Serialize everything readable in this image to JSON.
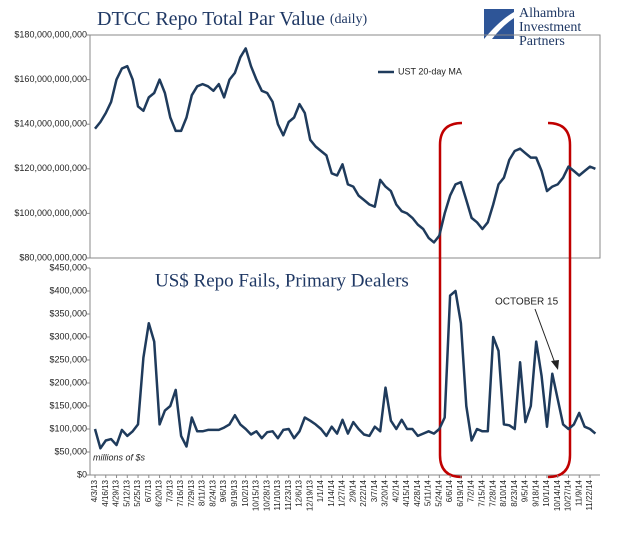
{
  "logo": [
    "Alhambra",
    "Investment",
    "Partners"
  ],
  "chart_data": [
    {
      "type": "line",
      "title": "DTCC Repo Total Par Value",
      "title_note": "(daily)",
      "ylim": [
        80000000000,
        180000000000
      ],
      "yticks": [
        {
          "value": 80000000000,
          "label": "$80,000,000,000"
        },
        {
          "value": 100000000000,
          "label": "$100,000,000,000"
        },
        {
          "value": 120000000000,
          "label": "$120,000,000,000"
        },
        {
          "value": 140000000000,
          "label": "$140,000,000,000"
        },
        {
          "value": 160000000000,
          "label": "$160,000,000,000"
        },
        {
          "value": 180000000000,
          "label": "$180,000,000,000"
        }
      ],
      "series": [
        {
          "name": "UST 20-day MA",
          "color": "#1f3b5c",
          "values": [
            138000000000,
            141000000000,
            145000000000,
            150000000000,
            160000000000,
            165000000000,
            166000000000,
            160000000000,
            148000000000,
            146000000000,
            152000000000,
            154000000000,
            160000000000,
            154000000000,
            143000000000,
            137000000000,
            137000000000,
            143000000000,
            153000000000,
            157000000000,
            158000000000,
            157000000000,
            155000000000,
            158000000000,
            152000000000,
            160000000000,
            163000000000,
            170000000000,
            174000000000,
            166000000000,
            160000000000,
            155000000000,
            154000000000,
            150000000000,
            140000000000,
            135000000000,
            141000000000,
            143000000000,
            149000000000,
            145000000000,
            133000000000,
            130000000000,
            128000000000,
            126000000000,
            118000000000,
            117000000000,
            122000000000,
            113000000000,
            112000000000,
            108000000000,
            106000000000,
            104000000000,
            103000000000,
            115000000000,
            112000000000,
            110000000000,
            104000000000,
            101000000000,
            100000000000,
            98000000000,
            95000000000,
            93000000000,
            89000000000,
            87000000000,
            90000000000,
            100000000000,
            108000000000,
            113000000000,
            114000000000,
            106000000000,
            98000000000,
            96000000000,
            93000000000,
            96000000000,
            104000000000,
            113000000000,
            116000000000,
            124000000000,
            128000000000,
            129000000000,
            127000000000,
            125000000000,
            125000000000,
            119000000000,
            110000000000,
            112000000000,
            113000000000,
            116000000000,
            121000000000,
            119000000000,
            117000000000,
            119000000000,
            121000000000,
            120000000000
          ]
        }
      ],
      "legend": "upper right"
    },
    {
      "type": "line",
      "title": "US$ Repo Fails, Primary Dealers",
      "note": "millions of $s",
      "annotation": "OCTOBER 15",
      "categories": [
        "4/3/13",
        null,
        "4/16/13",
        null,
        "4/29/13",
        null,
        "5/12/13",
        null,
        "5/25/13",
        null,
        "6/7/13",
        null,
        "6/20/13",
        null,
        "7/3/13",
        null,
        "7/16/13",
        null,
        "7/29/13",
        null,
        "8/11/13",
        null,
        "8/24/13",
        null,
        "9/6/13",
        null,
        "9/19/13",
        null,
        "10/2/13",
        null,
        "10/15/13",
        null,
        "10/28/13",
        null,
        "11/10/13",
        null,
        "11/23/13",
        null,
        "12/6/13",
        null,
        "12/19/13",
        null,
        "1/1/14",
        null,
        "1/14/14",
        null,
        "1/27/14",
        null,
        "2/9/14",
        null,
        "2/22/14",
        null,
        "3/7/14",
        null,
        "3/20/14",
        null,
        "4/2/14",
        null,
        "4/15/14",
        null,
        "4/28/14",
        null,
        "5/11/14",
        null,
        "5/24/14",
        null,
        "6/6/14",
        null,
        "6/19/14",
        null,
        "7/2/14",
        null,
        "7/15/14",
        null,
        "7/28/14",
        null,
        "8/10/14",
        null,
        "8/23/14",
        null,
        "9/5/14",
        null,
        "9/18/14",
        null,
        "10/1/14",
        null,
        "10/14/14",
        null,
        "10/27/14",
        null,
        "11/9/14",
        null,
        "11/22/14",
        null
      ],
      "ylim": [
        0,
        450000
      ],
      "yticks": [
        {
          "value": 0,
          "label": "$0"
        },
        {
          "value": 50000,
          "label": "$50,000"
        },
        {
          "value": 100000,
          "label": "$100,000"
        },
        {
          "value": 150000,
          "label": "$150,000"
        },
        {
          "value": 200000,
          "label": "$200,000"
        },
        {
          "value": 250000,
          "label": "$250,000"
        },
        {
          "value": 300000,
          "label": "$300,000"
        },
        {
          "value": 350000,
          "label": "$350,000"
        },
        {
          "value": 400000,
          "label": "$400,000"
        },
        {
          "value": 450000,
          "label": "$450,000"
        }
      ],
      "series": [
        {
          "color": "#1f3b5c",
          "values": [
            100000,
            58000,
            75000,
            78000,
            65000,
            98000,
            85000,
            95000,
            110000,
            255000,
            330000,
            290000,
            110000,
            140000,
            150000,
            185000,
            85000,
            62000,
            125000,
            95000,
            95000,
            98000,
            98000,
            98000,
            103000,
            110000,
            130000,
            110000,
            100000,
            88000,
            95000,
            80000,
            93000,
            95000,
            80000,
            98000,
            100000,
            80000,
            95000,
            125000,
            118000,
            110000,
            100000,
            85000,
            105000,
            90000,
            120000,
            90000,
            115000,
            100000,
            88000,
            85000,
            105000,
            95000,
            190000,
            118000,
            100000,
            120000,
            100000,
            100000,
            85000,
            90000,
            95000,
            90000,
            100000,
            125000,
            390000,
            400000,
            330000,
            150000,
            75000,
            100000,
            95000,
            95000,
            300000,
            270000,
            110000,
            108000,
            100000,
            245000,
            115000,
            150000,
            290000,
            215000,
            105000,
            220000,
            165000,
            110000,
            100000,
            110000,
            135000,
            105000,
            100000,
            90000
          ]
        }
      ]
    }
  ]
}
